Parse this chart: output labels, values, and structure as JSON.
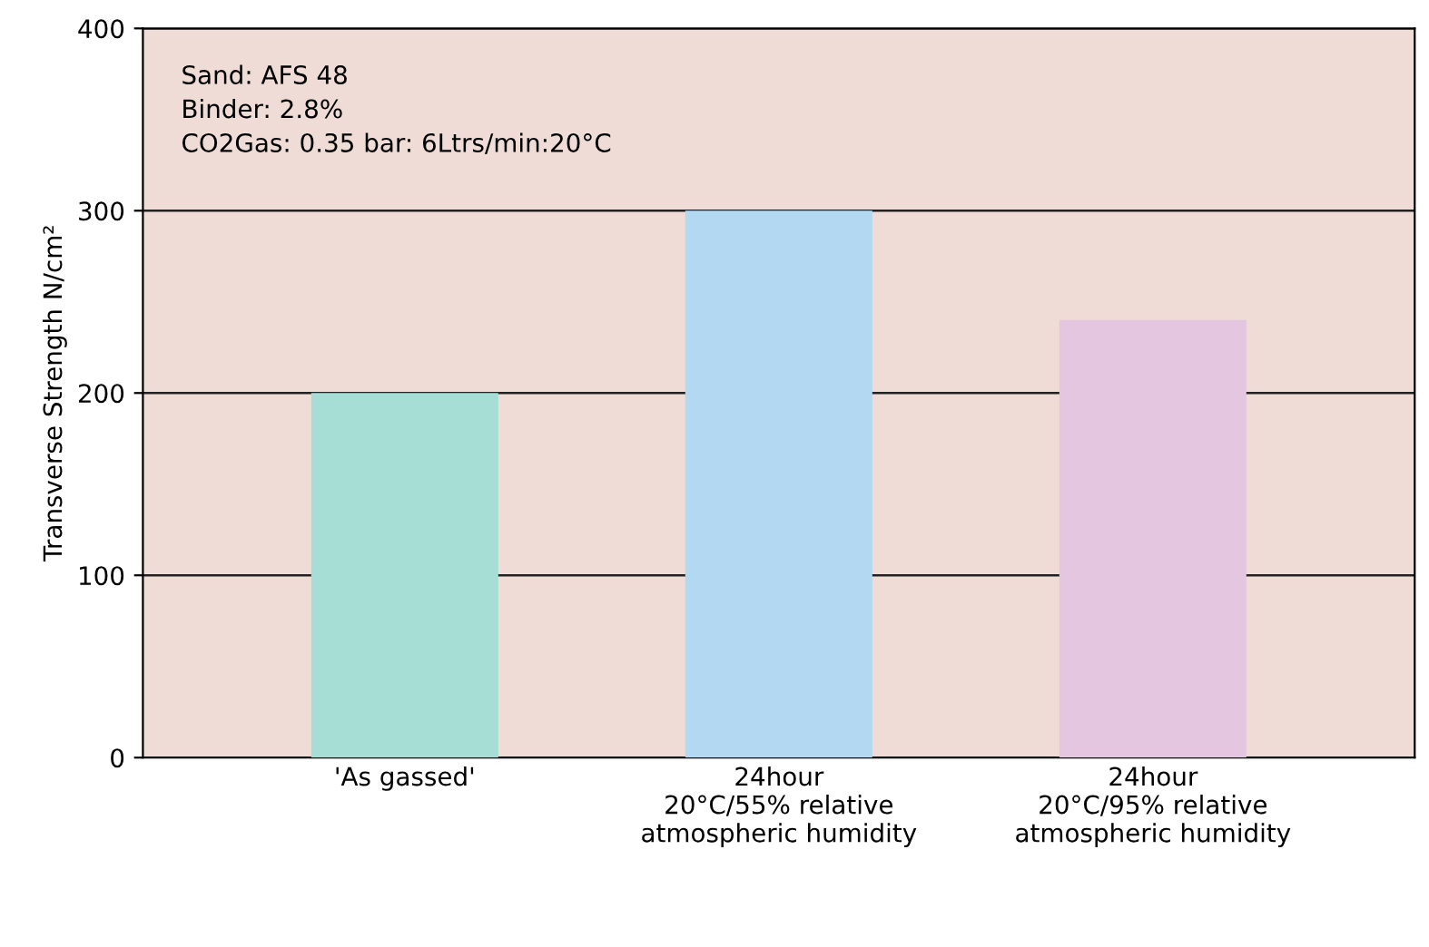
{
  "chart_data": {
    "type": "bar",
    "ylabel": "Transverse Strength N/cm²",
    "categories": [
      "'As gassed'",
      "24hour\n20°C/55% relative\natmospheric humidity",
      "24hour\n20°C/95% relative\natmospheric humidity"
    ],
    "values": [
      200,
      300,
      240
    ],
    "colors": [
      "#a6ded6",
      "#b2d8f2",
      "#e4c6e0"
    ],
    "ylim": [
      0,
      400
    ],
    "yticks": [
      0,
      100,
      200,
      300,
      400
    ],
    "grid": "y",
    "annotations": [
      "Sand: AFS 48",
      "Binder: 2.8%",
      "CO2Gas: 0.35 bar: 6Ltrs/min:20°C"
    ]
  }
}
